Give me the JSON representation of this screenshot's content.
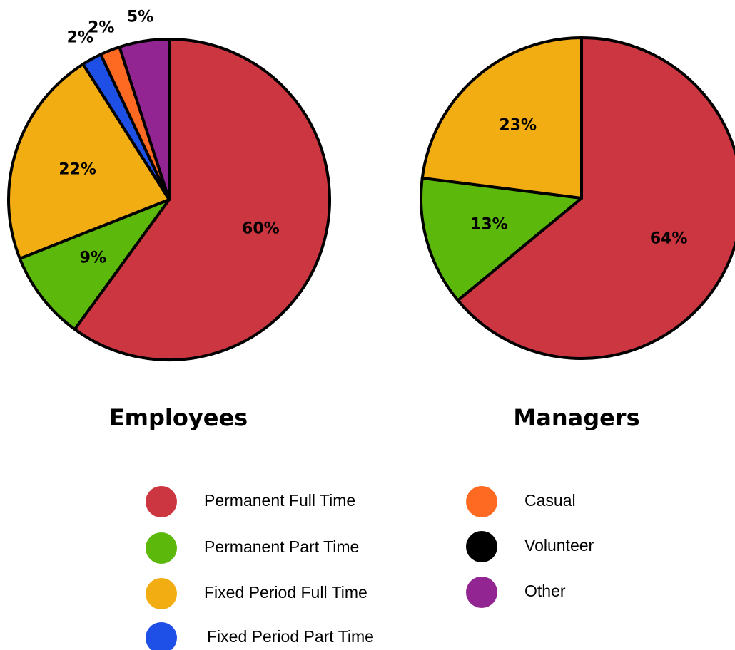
{
  "chart_data": [
    {
      "type": "pie",
      "title": "Employees",
      "categories": [
        "Permanent Full Time",
        "Permanent Part Time",
        "Fixed Period Full Time",
        "Fixed Period Part Time",
        "Casual",
        "Volunteer",
        "Other"
      ],
      "colors": [
        "#cc3640",
        "#5cb80a",
        "#f2ad12",
        "#1e4fe6",
        "#ff6a23",
        "#000000",
        "#922592"
      ],
      "values": [
        60,
        9,
        22,
        2,
        2,
        0,
        5
      ],
      "value_labels": [
        "60%",
        "9%",
        "22%",
        "2%",
        "2%",
        null,
        "5%"
      ]
    },
    {
      "type": "pie",
      "title": "Managers",
      "categories": [
        "Permanent Full Time",
        "Permanent Part Time",
        "Fixed Period Full Time",
        "Fixed Period Part Time",
        "Casual",
        "Volunteer",
        "Other"
      ],
      "colors": [
        "#cc3640",
        "#5cb80a",
        "#f2ad12",
        "#1e4fe6",
        "#ff6a23",
        "#000000",
        "#922592"
      ],
      "values": [
        64,
        13,
        23,
        0,
        0,
        0,
        0
      ],
      "value_labels": [
        "64%",
        "13%",
        "23%",
        null,
        null,
        null,
        null
      ]
    }
  ]
}
